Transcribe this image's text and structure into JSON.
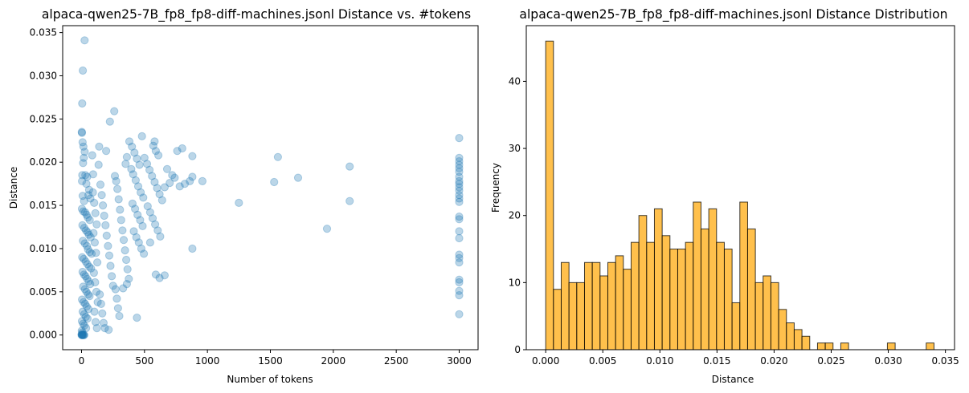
{
  "chart_data": [
    {
      "type": "scatter",
      "title": "alpaca-qwen25-7B_fp8_fp8-diff-machines.jsonl Distance vs. #tokens",
      "xlabel": "Number of tokens",
      "ylabel": "Distance",
      "xlim": [
        -150,
        3150
      ],
      "ylim": [
        -0.0017,
        0.0358
      ],
      "xticks": [
        0,
        500,
        1000,
        1500,
        2000,
        2500,
        3000
      ],
      "xtick_labels": [
        "0",
        "500",
        "1000",
        "1500",
        "2000",
        "2500",
        "3000"
      ],
      "yticks": [
        0.0,
        0.005,
        0.01,
        0.015,
        0.02,
        0.025,
        0.03,
        0.035
      ],
      "ytick_labels": [
        "0.000",
        "0.005",
        "0.010",
        "0.015",
        "0.020",
        "0.025",
        "0.030",
        "0.035"
      ],
      "marker_color": "#1f77b4",
      "marker_alpha": 0.3,
      "grid": false,
      "points": [
        [
          24,
          0.0341
        ],
        [
          10,
          0.0306
        ],
        [
          5,
          0.0268
        ],
        [
          2,
          0.0235
        ],
        [
          3,
          0.0234
        ],
        [
          8,
          0.0223
        ],
        [
          15,
          0.0218
        ],
        [
          25,
          0.0212
        ],
        [
          18,
          0.0205
        ],
        [
          12,
          0.0199
        ],
        [
          6,
          0.0185
        ],
        [
          30,
          0.0185
        ],
        [
          45,
          0.0183
        ],
        [
          4,
          0.0178
        ],
        [
          38,
          0.0175
        ],
        [
          60,
          0.0168
        ],
        [
          9,
          0.0161
        ],
        [
          55,
          0.0162
        ],
        [
          20,
          0.0155
        ],
        [
          70,
          0.0158
        ],
        [
          3,
          0.0146
        ],
        [
          14,
          0.0143
        ],
        [
          28,
          0.0142
        ],
        [
          40,
          0.0139
        ],
        [
          50,
          0.0136
        ],
        [
          65,
          0.0133
        ],
        [
          7,
          0.0127
        ],
        [
          22,
          0.0124
        ],
        [
          35,
          0.0121
        ],
        [
          48,
          0.0119
        ],
        [
          58,
          0.0116
        ],
        [
          72,
          0.0113
        ],
        [
          11,
          0.0109
        ],
        [
          26,
          0.0106
        ],
        [
          42,
          0.0103
        ],
        [
          52,
          0.0099
        ],
        [
          66,
          0.0096
        ],
        [
          80,
          0.0094
        ],
        [
          5,
          0.009
        ],
        [
          17,
          0.0088
        ],
        [
          33,
          0.0085
        ],
        [
          46,
          0.0082
        ],
        [
          61,
          0.0079
        ],
        [
          75,
          0.0077
        ],
        [
          8,
          0.0073
        ],
        [
          19,
          0.007
        ],
        [
          31,
          0.0068
        ],
        [
          44,
          0.0065
        ],
        [
          57,
          0.0062
        ],
        [
          69,
          0.0059
        ],
        [
          13,
          0.0056
        ],
        [
          27,
          0.0053
        ],
        [
          39,
          0.005
        ],
        [
          53,
          0.0047
        ],
        [
          64,
          0.0045
        ],
        [
          4,
          0.0041
        ],
        [
          16,
          0.0038
        ],
        [
          29,
          0.0036
        ],
        [
          41,
          0.0033
        ],
        [
          55,
          0.003
        ],
        [
          9,
          0.0027
        ],
        [
          21,
          0.0024
        ],
        [
          34,
          0.0021
        ],
        [
          47,
          0.0019
        ],
        [
          3,
          0.0016
        ],
        [
          12,
          0.0013
        ],
        [
          23,
          0.0011
        ],
        [
          36,
          0.0008
        ],
        [
          2,
          0.0005
        ],
        [
          6,
          0.0003
        ],
        [
          1,
          0.0001
        ],
        [
          4,
          0.0
        ],
        [
          7,
          0.0
        ],
        [
          10,
          0.0
        ],
        [
          14,
          0.0
        ],
        [
          18,
          0.0
        ],
        [
          22,
          0.0
        ],
        [
          0,
          0.0
        ],
        [
          3,
          0.0
        ],
        [
          90,
          0.0165
        ],
        [
          100,
          0.0153
        ],
        [
          110,
          0.0141
        ],
        [
          120,
          0.0128
        ],
        [
          95,
          0.0118
        ],
        [
          105,
          0.0107
        ],
        [
          115,
          0.0095
        ],
        [
          125,
          0.0084
        ],
        [
          98,
          0.0072
        ],
        [
          108,
          0.0061
        ],
        [
          118,
          0.005
        ],
        [
          128,
          0.0038
        ],
        [
          102,
          0.0027
        ],
        [
          112,
          0.0015
        ],
        [
          122,
          0.0008
        ],
        [
          140,
          0.0218
        ],
        [
          85,
          0.0208
        ],
        [
          135,
          0.0197
        ],
        [
          92,
          0.0186
        ],
        [
          150,
          0.0174
        ],
        [
          160,
          0.0162
        ],
        [
          170,
          0.015
        ],
        [
          180,
          0.0138
        ],
        [
          190,
          0.0127
        ],
        [
          200,
          0.0115
        ],
        [
          210,
          0.0103
        ],
        [
          220,
          0.0092
        ],
        [
          230,
          0.008
        ],
        [
          240,
          0.0068
        ],
        [
          250,
          0.0057
        ],
        [
          145,
          0.0047
        ],
        [
          155,
          0.0036
        ],
        [
          165,
          0.0025
        ],
        [
          175,
          0.0014
        ],
        [
          185,
          0.0008
        ],
        [
          215,
          0.0006
        ],
        [
          225,
          0.0247
        ],
        [
          260,
          0.0259
        ],
        [
          195,
          0.0213
        ],
        [
          265,
          0.0184
        ],
        [
          275,
          0.0178
        ],
        [
          285,
          0.0169
        ],
        [
          295,
          0.0157
        ],
        [
          305,
          0.0145
        ],
        [
          315,
          0.0133
        ],
        [
          325,
          0.0121
        ],
        [
          335,
          0.011
        ],
        [
          345,
          0.0098
        ],
        [
          355,
          0.0087
        ],
        [
          365,
          0.0076
        ],
        [
          375,
          0.0065
        ],
        [
          270,
          0.0053
        ],
        [
          280,
          0.0042
        ],
        [
          290,
          0.0031
        ],
        [
          300,
          0.0022
        ],
        [
          350,
          0.0198
        ],
        [
          360,
          0.0206
        ],
        [
          380,
          0.0224
        ],
        [
          400,
          0.0218
        ],
        [
          420,
          0.0211
        ],
        [
          440,
          0.0204
        ],
        [
          460,
          0.0197
        ],
        [
          480,
          0.023
        ],
        [
          395,
          0.0192
        ],
        [
          410,
          0.0186
        ],
        [
          430,
          0.0179
        ],
        [
          450,
          0.0172
        ],
        [
          470,
          0.0165
        ],
        [
          490,
          0.0159
        ],
        [
          405,
          0.0152
        ],
        [
          425,
          0.0146
        ],
        [
          445,
          0.0139
        ],
        [
          465,
          0.0133
        ],
        [
          485,
          0.0126
        ],
        [
          415,
          0.012
        ],
        [
          435,
          0.0113
        ],
        [
          455,
          0.0107
        ],
        [
          475,
          0.01
        ],
        [
          495,
          0.0094
        ],
        [
          440,
          0.002
        ],
        [
          330,
          0.0054
        ],
        [
          360,
          0.0059
        ],
        [
          500,
          0.0205
        ],
        [
          520,
          0.0198
        ],
        [
          540,
          0.0191
        ],
        [
          560,
          0.0184
        ],
        [
          580,
          0.0177
        ],
        [
          600,
          0.017
        ],
        [
          620,
          0.0163
        ],
        [
          640,
          0.0156
        ],
        [
          525,
          0.0149
        ],
        [
          545,
          0.0142
        ],
        [
          565,
          0.0135
        ],
        [
          585,
          0.0128
        ],
        [
          605,
          0.0121
        ],
        [
          625,
          0.0114
        ],
        [
          545,
          0.0107
        ],
        [
          570,
          0.0219
        ],
        [
          590,
          0.0213
        ],
        [
          610,
          0.0208
        ],
        [
          580,
          0.0224
        ],
        [
          660,
          0.0171
        ],
        [
          700,
          0.0176
        ],
        [
          740,
          0.0182
        ],
        [
          780,
          0.0172
        ],
        [
          820,
          0.0175
        ],
        [
          860,
          0.0178
        ],
        [
          760,
          0.0213
        ],
        [
          800,
          0.0216
        ],
        [
          880,
          0.0207
        ],
        [
          680,
          0.0192
        ],
        [
          720,
          0.0185
        ],
        [
          960,
          0.0178
        ],
        [
          880,
          0.0183
        ],
        [
          590,
          0.007
        ],
        [
          620,
          0.0066
        ],
        [
          660,
          0.0069
        ],
        [
          880,
          0.01
        ],
        [
          1250,
          0.0153
        ],
        [
          1530,
          0.0177
        ],
        [
          1560,
          0.0206
        ],
        [
          1720,
          0.0182
        ],
        [
          1950,
          0.0123
        ],
        [
          2130,
          0.0155
        ],
        [
          2130,
          0.0195
        ],
        [
          3000,
          0.0228
        ],
        [
          3000,
          0.0205
        ],
        [
          3000,
          0.0201
        ],
        [
          3000,
          0.0197
        ],
        [
          3000,
          0.0193
        ],
        [
          3000,
          0.0189
        ],
        [
          3000,
          0.0183
        ],
        [
          3000,
          0.0178
        ],
        [
          3000,
          0.0175
        ],
        [
          3000,
          0.0171
        ],
        [
          3000,
          0.0167
        ],
        [
          3000,
          0.0162
        ],
        [
          3000,
          0.0158
        ],
        [
          3000,
          0.0154
        ],
        [
          3000,
          0.0137
        ],
        [
          3000,
          0.0134
        ],
        [
          3000,
          0.012
        ],
        [
          3000,
          0.0112
        ],
        [
          3000,
          0.0093
        ],
        [
          3000,
          0.0089
        ],
        [
          3000,
          0.0084
        ],
        [
          3000,
          0.0064
        ],
        [
          3000,
          0.0061
        ],
        [
          3000,
          0.0051
        ],
        [
          3000,
          0.0046
        ],
        [
          3000,
          0.0024
        ]
      ]
    },
    {
      "type": "bar",
      "subtype": "histogram",
      "title": "alpaca-qwen25-7B_fp8_fp8-diff-machines.jsonl Distance Distribution",
      "xlabel": "Distance",
      "ylabel": "Frequency",
      "bin_start": 0.0,
      "bin_width": 0.00068,
      "values": [
        46,
        9,
        13,
        10,
        10,
        13,
        13,
        11,
        13,
        14,
        12,
        16,
        20,
        16,
        21,
        17,
        15,
        15,
        16,
        22,
        18,
        21,
        16,
        15,
        7,
        22,
        18,
        10,
        11,
        10,
        6,
        4,
        3,
        2,
        0,
        1,
        1,
        0,
        1,
        0,
        0,
        0,
        0,
        0,
        1,
        0,
        0,
        0,
        0,
        1
      ],
      "xlim": [
        -0.0017,
        0.0358
      ],
      "ylim": [
        0,
        48.3
      ],
      "xticks": [
        0.0,
        0.005,
        0.01,
        0.015,
        0.02,
        0.025,
        0.03,
        0.035
      ],
      "xtick_labels": [
        "0.000",
        "0.005",
        "0.010",
        "0.015",
        "0.020",
        "0.025",
        "0.030",
        "0.035"
      ],
      "yticks": [
        0,
        10,
        20,
        30,
        40
      ],
      "ytick_labels": [
        "0",
        "10",
        "20",
        "30",
        "40"
      ],
      "bar_color": "#ffa500",
      "bar_alpha": 0.7,
      "edge_color": "#000000",
      "grid": false
    }
  ]
}
